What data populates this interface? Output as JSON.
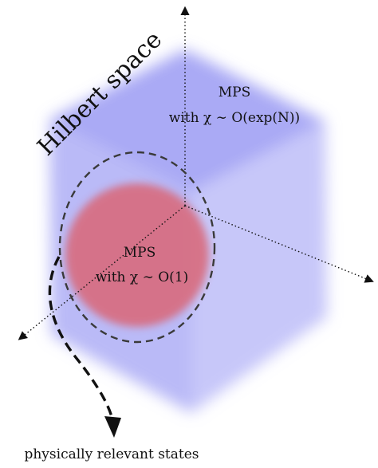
{
  "diagram": {
    "title": "Hilbert space",
    "outer_region": {
      "line1": "MPS",
      "line2": "with χ ∼ O(exp(N))"
    },
    "inner_region": {
      "line1": "MPS",
      "line2": "with χ ∼ O(1)"
    },
    "arrow_caption": "physically relevant states"
  },
  "colors": {
    "cube": "#9a9af5",
    "sphere": "#d86a78",
    "dashed_outline": "#3a3a3a",
    "axes": "#111111"
  }
}
